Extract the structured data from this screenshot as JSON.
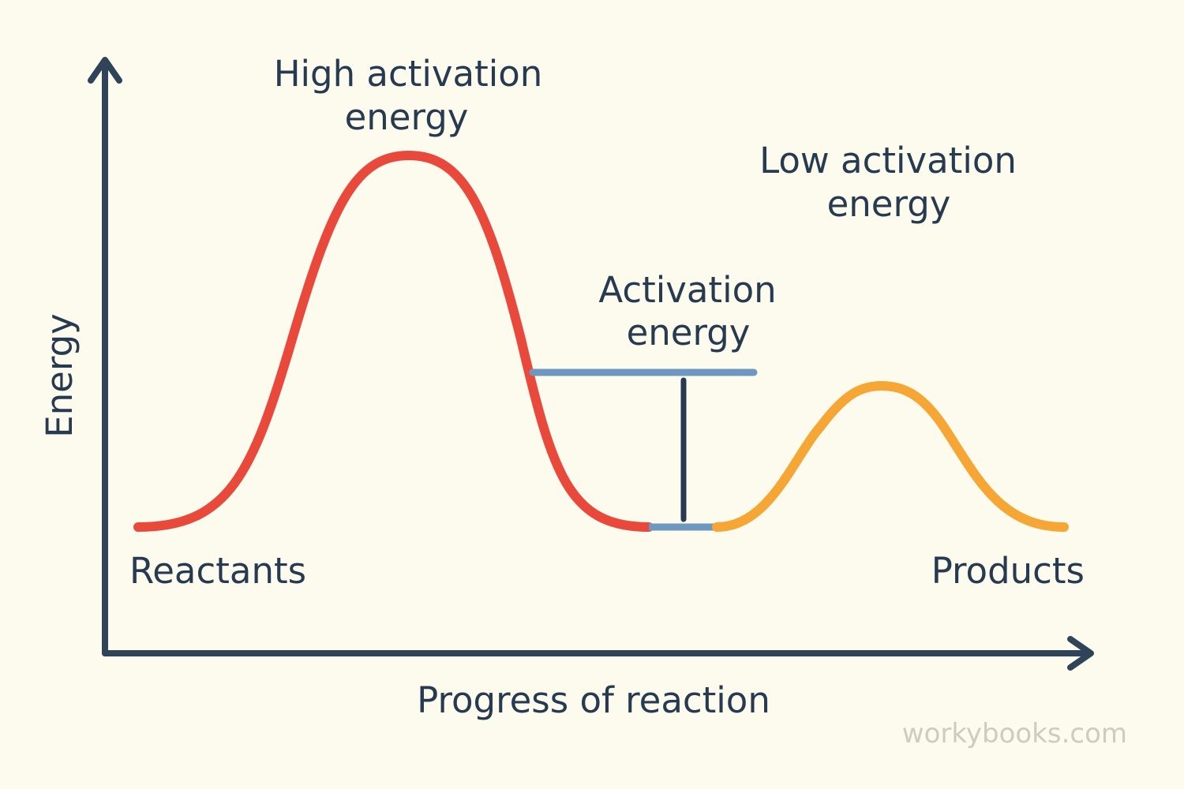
{
  "colors": {
    "background": "#fdfaee",
    "axis": "#2f4458",
    "text": "#263a50",
    "high_curve": "#e8493b",
    "low_curve": "#f5a635",
    "activation_bar": "#6e98c0",
    "watermark": "#cfcbbd"
  },
  "axes": {
    "y_label": "Energy",
    "x_label": "Progress of reaction"
  },
  "labels": {
    "high_activation_line1": "High activation",
    "high_activation_line2": "energy",
    "low_activation_line1": "Low activation",
    "low_activation_line2": "energy",
    "activation_line1": "Activation",
    "activation_line2": "energy",
    "reactants": "Reactants",
    "products": "Products"
  },
  "watermark": "workybooks.com"
}
